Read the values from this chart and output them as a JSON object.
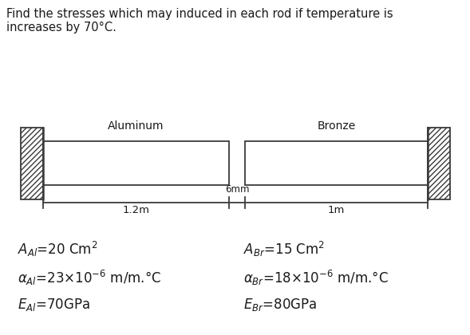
{
  "title_line1": "Find the stresses which may induced in each rod if temperature is",
  "title_line2": "increases by 70°C.",
  "label_aluminum": "Aluminum",
  "label_bronze": "Bronze",
  "dim_al": "1.2m",
  "dim_gap": "6mm",
  "dim_br": "1m",
  "bg_color": "#ffffff",
  "line_color": "#3a3a3a",
  "text_color": "#1a1a1a",
  "title_fontsize": 10.5,
  "label_fontsize": 10,
  "dim_fontsize": 9.5,
  "prop_fontsize": 12
}
